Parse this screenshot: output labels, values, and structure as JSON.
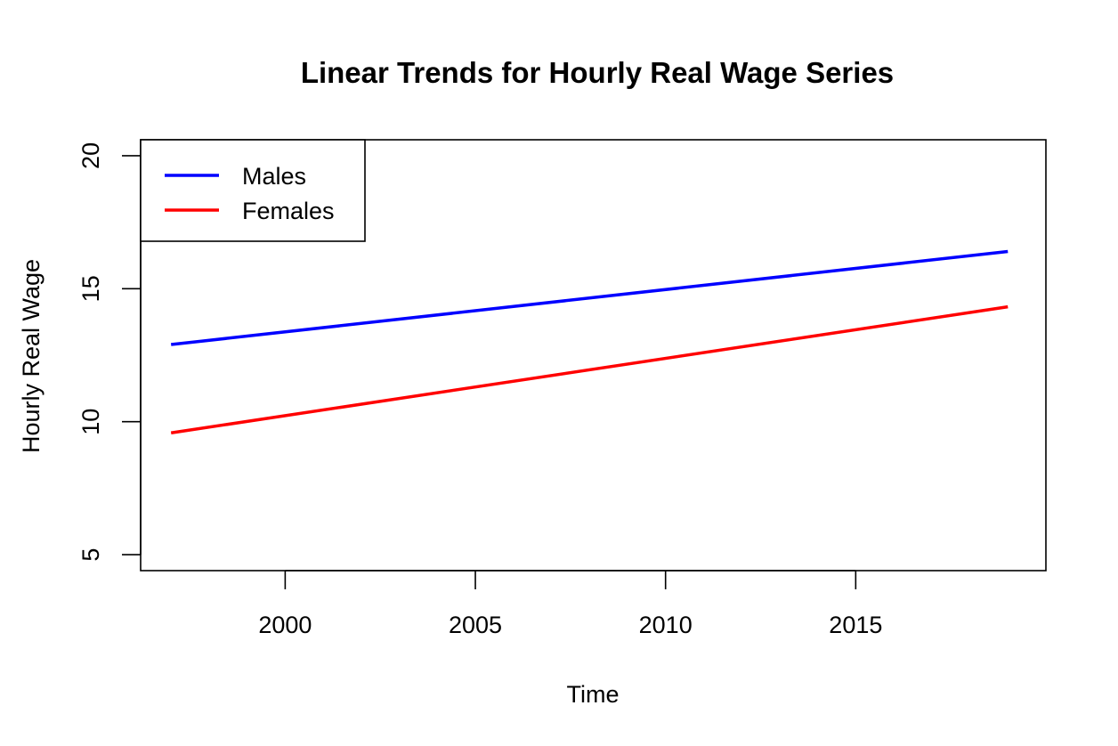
{
  "chart_data": {
    "type": "line",
    "title": "Linear Trends for Hourly Real Wage Series",
    "xlabel": "Time",
    "ylabel": "Hourly Real Wage",
    "xlim": [
      1996.2,
      2020.0
    ],
    "ylim": [
      4.4,
      20.6
    ],
    "xticks": [
      2000,
      2005,
      2010,
      2015
    ],
    "yticks": [
      5,
      10,
      15,
      20
    ],
    "grid": false,
    "legend_position": "top-left",
    "series": [
      {
        "name": "Males",
        "color": "#0000ff",
        "x": [
          1997,
          2019
        ],
        "y": [
          12.9,
          16.4
        ]
      },
      {
        "name": "Females",
        "color": "#ff0000",
        "x": [
          1997,
          2019
        ],
        "y": [
          9.58,
          14.32
        ]
      }
    ]
  }
}
